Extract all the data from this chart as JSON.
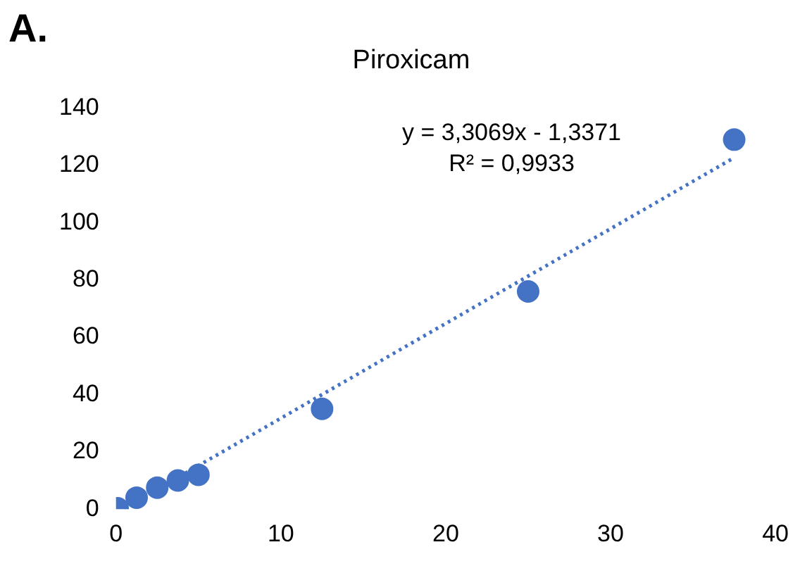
{
  "chart_data": {
    "type": "scatter",
    "title": "Piroxicam",
    "marker": "circle",
    "grid": false,
    "xlim": [
      0,
      40
    ],
    "xticks": [
      0,
      10,
      20,
      30,
      40
    ],
    "ylim": [
      0,
      140
    ],
    "yticks": [
      0,
      20,
      40,
      60,
      80,
      100,
      120,
      140
    ],
    "annotations": [
      "A.",
      "y = 3,3069x - 1,3371",
      "R² = 0,9933"
    ],
    "series": [
      {
        "color": "#4472c4",
        "x": [
          0.1,
          1.25,
          2.5,
          3.75,
          5,
          12.5,
          25,
          37.5
        ],
        "values": [
          0.3,
          4,
          7.5,
          10,
          12,
          35,
          76,
          129
        ]
      },
      {
        "type": "line",
        "line_style": "dotted",
        "marker": "none",
        "color": "#4472c4",
        "x": [
          0.5,
          37.5
        ],
        "values": [
          0.3,
          122.7
        ]
      }
    ]
  }
}
